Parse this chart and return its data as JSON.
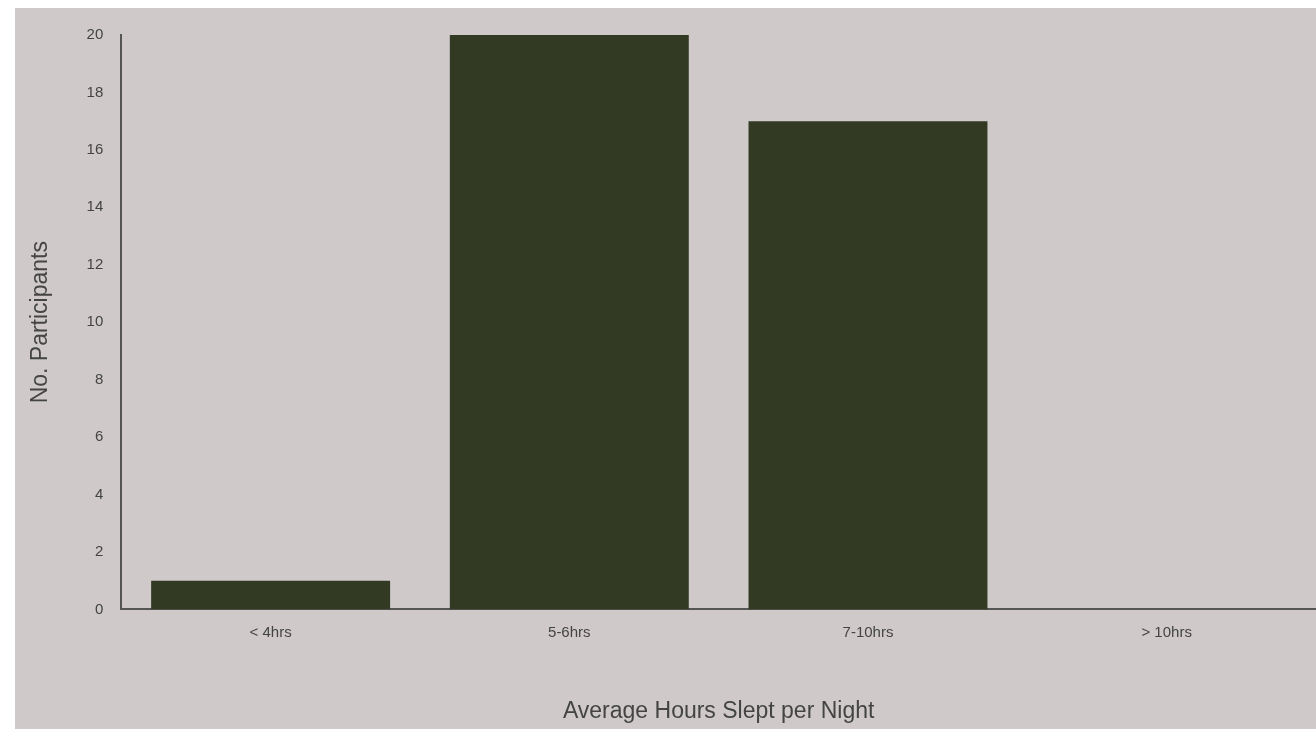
{
  "chart_data": {
    "type": "bar",
    "xlabel": "Average Hours Slept per Night",
    "ylabel": "No. Participants",
    "categories": [
      "< 4hrs",
      "5-6hrs",
      "7-10hrs",
      "> 10hrs"
    ],
    "values": [
      1,
      20,
      17,
      0
    ],
    "color": "#333a24",
    "ylim": [
      0,
      20
    ],
    "yticks": [
      0,
      2,
      4,
      6,
      8,
      10,
      12,
      14,
      16,
      18,
      20
    ],
    "grid": false,
    "legend": false
  }
}
